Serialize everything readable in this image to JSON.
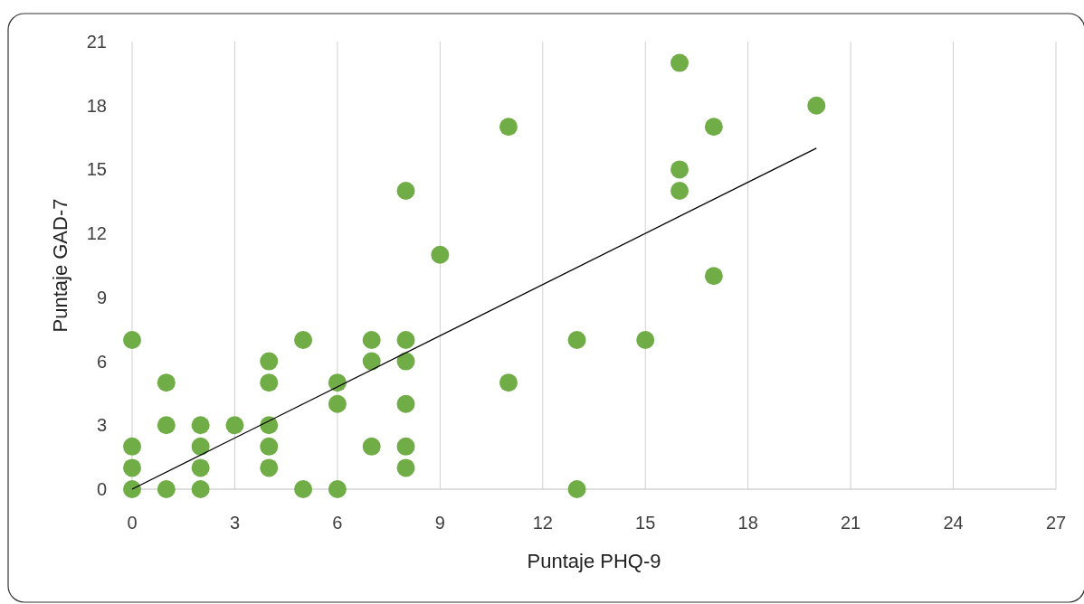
{
  "chart_data": {
    "type": "scatter",
    "xlabel": "Puntaje PHQ-9",
    "ylabel": "Puntaje GAD-7",
    "xlim": [
      0,
      27
    ],
    "xticks": [
      0,
      3,
      6,
      9,
      12,
      15,
      18,
      21,
      24,
      27
    ],
    "ylim": [
      0,
      21
    ],
    "yticks": [
      0,
      3,
      6,
      9,
      12,
      15,
      18,
      21
    ],
    "grid": "x",
    "series": [
      {
        "marker": "circle",
        "color": "#70ad47",
        "x": [
          0,
          0,
          0,
          0,
          1,
          1,
          1,
          2,
          2,
          2,
          2,
          3,
          4,
          4,
          4,
          4,
          4,
          5,
          5,
          6,
          6,
          6,
          7,
          7,
          7,
          8,
          8,
          8,
          8,
          8,
          8,
          9,
          11,
          11,
          13,
          13,
          15,
          16,
          16,
          16,
          17,
          17,
          20
        ],
        "values": [
          0,
          1,
          2,
          7,
          0,
          3,
          5,
          0,
          1,
          2,
          3,
          3,
          1,
          2,
          3,
          5,
          6,
          0,
          7,
          0,
          4,
          5,
          2,
          6,
          7,
          1,
          2,
          4,
          6,
          7,
          14,
          11,
          5,
          17,
          0,
          7,
          7,
          14,
          15,
          20,
          10,
          17,
          18
        ]
      },
      {
        "type": "line",
        "color": "#000000",
        "x": [
          0,
          20
        ],
        "values": [
          0,
          16
        ]
      }
    ]
  }
}
